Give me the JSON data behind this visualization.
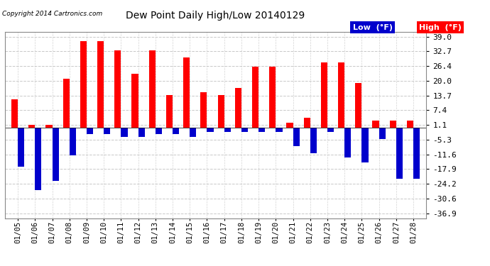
{
  "title": "Dew Point Daily High/Low 20140129",
  "copyright": "Copyright 2014 Cartronics.com",
  "dates": [
    "01/05",
    "01/06",
    "01/07",
    "01/08",
    "01/09",
    "01/10",
    "01/11",
    "01/12",
    "01/13",
    "01/14",
    "01/15",
    "01/16",
    "01/17",
    "01/18",
    "01/19",
    "01/20",
    "01/21",
    "01/22",
    "01/23",
    "01/24",
    "01/25",
    "01/26",
    "01/27",
    "01/28"
  ],
  "high": [
    12.0,
    1.0,
    1.0,
    21.0,
    37.0,
    37.0,
    33.0,
    23.0,
    33.0,
    14.0,
    30.0,
    15.0,
    14.0,
    17.0,
    26.0,
    26.0,
    2.0,
    4.0,
    28.0,
    28.0,
    19.0,
    3.0,
    3.0,
    3.0
  ],
  "low": [
    -17.0,
    -27.0,
    -23.0,
    -12.0,
    -3.0,
    -3.0,
    -4.0,
    -4.0,
    -3.0,
    -3.0,
    -4.0,
    -2.0,
    -2.0,
    -2.0,
    -2.0,
    -2.0,
    -8.0,
    -11.0,
    -2.0,
    -13.0,
    -15.0,
    -5.0,
    -22.0,
    -22.0
  ],
  "high_color": "#ff0000",
  "low_color": "#0000cc",
  "bg_color": "#ffffff",
  "plot_bg_color": "#ffffff",
  "grid_color": "#c8c8c8",
  "ylim": [
    -39.0,
    41.0
  ],
  "yticks": [
    -36.9,
    -30.6,
    -24.2,
    -17.9,
    -11.6,
    -5.3,
    1.1,
    7.4,
    13.7,
    20.0,
    26.4,
    32.7,
    39.0
  ],
  "bar_width": 0.38,
  "legend_low_label": "Low  (°F)",
  "legend_high_label": "High  (°F)"
}
